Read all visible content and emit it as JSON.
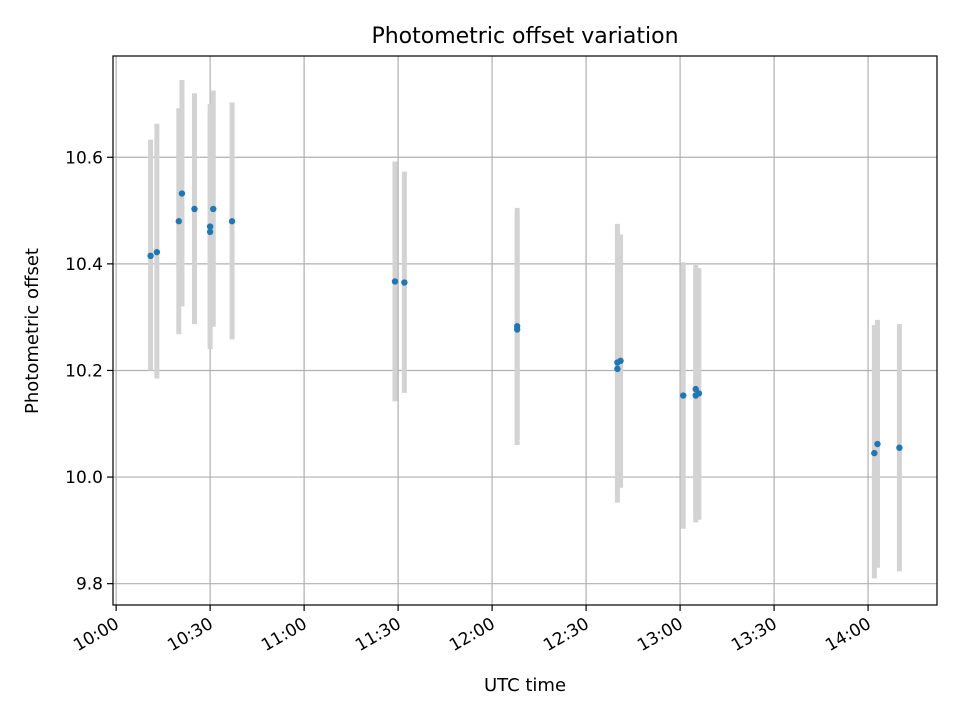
{
  "chart_data": {
    "type": "scatter",
    "title": "Photometric offset variation",
    "xlabel": "UTC time",
    "ylabel": "Photometric offset",
    "x_tick_labels": [
      "10:00",
      "10:30",
      "11:00",
      "11:30",
      "12:00",
      "12:30",
      "13:00",
      "13:30",
      "14:00"
    ],
    "y_tick_labels": [
      "9.8",
      "10.0",
      "10.2",
      "10.4",
      "10.6"
    ],
    "y_ticks": [
      9.8,
      10.0,
      10.2,
      10.4,
      10.6
    ],
    "xlim": [
      "09:59",
      "14:22"
    ],
    "ylim": [
      9.76,
      10.79
    ],
    "grid": true,
    "colors": {
      "points": "#1f77b4",
      "errorbars": "#d3d3d3",
      "grid": "#b0b0b0"
    },
    "points": [
      {
        "time": "10:11",
        "value": 10.415,
        "err_low": 10.2,
        "err_high": 10.633
      },
      {
        "time": "10:13",
        "value": 10.422,
        "err_low": 10.185,
        "err_high": 10.663
      },
      {
        "time": "10:20",
        "value": 10.48,
        "err_low": 10.268,
        "err_high": 10.692
      },
      {
        "time": "10:21",
        "value": 10.532,
        "err_low": 10.32,
        "err_high": 10.745
      },
      {
        "time": "10:25",
        "value": 10.503,
        "err_low": 10.287,
        "err_high": 10.72
      },
      {
        "time": "10:30",
        "value": 10.47,
        "err_low": 10.24,
        "err_high": 10.7
      },
      {
        "time": "10:30",
        "value": 10.46,
        "err_low": 10.245,
        "err_high": 10.675
      },
      {
        "time": "10:31",
        "value": 10.503,
        "err_low": 10.282,
        "err_high": 10.725
      },
      {
        "time": "10:37",
        "value": 10.48,
        "err_low": 10.258,
        "err_high": 10.703
      },
      {
        "time": "11:29",
        "value": 10.367,
        "err_low": 10.142,
        "err_high": 10.592
      },
      {
        "time": "11:32",
        "value": 10.365,
        "err_low": 10.158,
        "err_high": 10.573
      },
      {
        "time": "12:08",
        "value": 10.283,
        "err_low": 10.07,
        "err_high": 10.505
      },
      {
        "time": "12:08",
        "value": 10.277,
        "err_low": 10.06,
        "err_high": 10.493
      },
      {
        "time": "12:40",
        "value": 10.215,
        "err_low": 9.985,
        "err_high": 10.475
      },
      {
        "time": "12:40",
        "value": 10.203,
        "err_low": 9.952,
        "err_high": 10.453
      },
      {
        "time": "12:41",
        "value": 10.218,
        "err_low": 9.98,
        "err_high": 10.455
      },
      {
        "time": "13:01",
        "value": 10.153,
        "err_low": 9.903,
        "err_high": 10.403
      },
      {
        "time": "13:05",
        "value": 10.165,
        "err_low": 9.935,
        "err_high": 10.398
      },
      {
        "time": "13:05",
        "value": 10.153,
        "err_low": 9.915,
        "err_high": 10.39
      },
      {
        "time": "13:06",
        "value": 10.157,
        "err_low": 9.92,
        "err_high": 10.392
      },
      {
        "time": "14:02",
        "value": 10.045,
        "err_low": 9.81,
        "err_high": 10.285
      },
      {
        "time": "14:03",
        "value": 10.062,
        "err_low": 9.83,
        "err_high": 10.295
      },
      {
        "time": "14:10",
        "value": 10.055,
        "err_low": 9.823,
        "err_high": 10.287
      }
    ]
  }
}
